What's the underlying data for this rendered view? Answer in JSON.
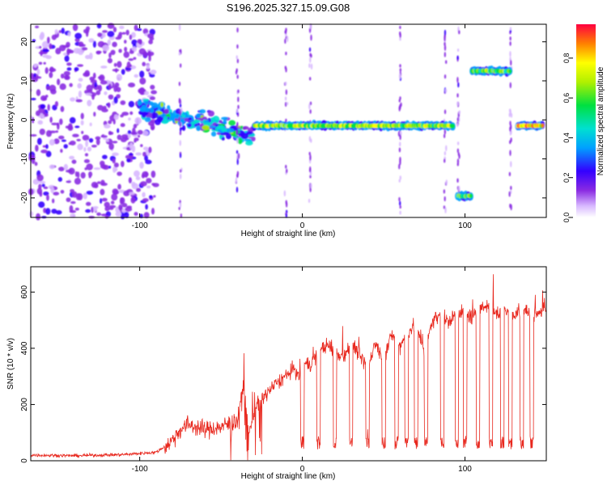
{
  "title": "S196.2025.327.15.09.G08",
  "chart_data": [
    {
      "type": "heatmap",
      "xlabel": "Height of straight line (km)",
      "ylabel": "Frequency (Hz)",
      "xlim": [
        -167,
        150
      ],
      "ylim": [
        -25,
        24.5
      ],
      "x_ticks": [
        -100,
        0,
        100
      ],
      "y_ticks": [
        -20,
        -10,
        0,
        10,
        20
      ],
      "colorbar": {
        "label": "Normalized spectral amplitude",
        "range": [
          0.0,
          0.97
        ],
        "ticks": [
          0.0,
          0.2,
          0.4,
          0.6,
          0.8
        ]
      },
      "features": [
        {
          "name": "noise_field",
          "x": [
            -167,
            -90
          ],
          "freq": [
            -25,
            24.5
          ],
          "amplitude": 0.15
        },
        {
          "name": "transition_cluster",
          "x": [
            -100,
            -30
          ],
          "freq": [
            -8,
            7
          ],
          "amplitude": 0.35
        },
        {
          "name": "main_track",
          "x": [
            -30,
            93
          ],
          "freq": -1.5,
          "amplitude": 0.75
        },
        {
          "name": "low_track",
          "x": [
            95,
            104
          ],
          "freq": -19.5,
          "amplitude": 0.65
        },
        {
          "name": "high_track",
          "x": [
            104,
            128
          ],
          "freq": 12.5,
          "amplitude": 0.7
        },
        {
          "name": "end_track",
          "x": [
            132,
            148
          ],
          "freq": -1.5,
          "amplitude": 0.9
        }
      ]
    },
    {
      "type": "line",
      "xlabel": "Height of straight line (km)",
      "ylabel": "SNR (10 * v/v)",
      "xlim": [
        -167,
        150
      ],
      "ylim": [
        0,
        690
      ],
      "x_ticks": [
        -100,
        0,
        100
      ],
      "y_ticks": [
        0,
        200,
        400,
        600
      ],
      "series": [
        {
          "name": "SNR",
          "color": "#e8281e",
          "x": [
            -167,
            -140,
            -110,
            -90,
            -82,
            -75,
            -70,
            -60,
            -50,
            -40,
            -36,
            -33,
            -28,
            -22,
            -15,
            -8,
            -5,
            -2,
            0,
            5,
            10,
            15,
            20,
            25,
            30,
            35,
            40,
            45,
            50,
            55,
            60,
            65,
            70,
            75,
            80,
            85,
            90,
            95,
            100,
            105,
            110,
            115,
            120,
            125,
            130,
            135,
            140,
            145,
            150
          ],
          "values": [
            20,
            18,
            22,
            30,
            60,
            110,
            130,
            110,
            120,
            140,
            280,
            100,
            200,
            240,
            280,
            310,
            330,
            290,
            350,
            340,
            390,
            410,
            390,
            370,
            420,
            380,
            330,
            420,
            360,
            450,
            410,
            460,
            480,
            390,
            500,
            520,
            490,
            530,
            520,
            510,
            540,
            560,
            520,
            540,
            510,
            550,
            520,
            530,
            530
          ]
        }
      ],
      "dips_x": [
        0,
        10,
        20,
        30,
        40,
        50,
        58,
        64,
        70,
        76,
        86,
        95,
        100,
        108,
        116,
        123,
        128,
        135,
        141
      ]
    }
  ]
}
